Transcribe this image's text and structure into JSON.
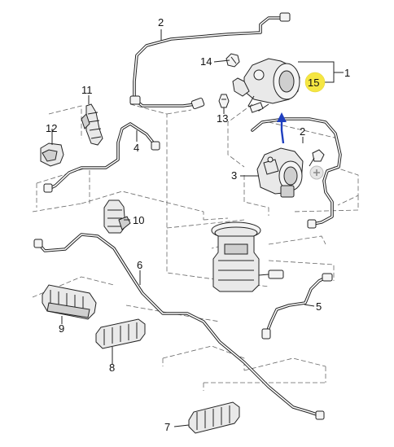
{
  "callouts": {
    "c1": "1",
    "c2a": "2",
    "c2b": "2",
    "c3": "3",
    "c4": "4",
    "c5": "5",
    "c6": "6",
    "c7": "7",
    "c8": "8",
    "c9": "9",
    "c10": "10",
    "c11": "11",
    "c12": "12",
    "c13": "13",
    "c14": "14",
    "c15": "15"
  },
  "colors": {
    "highlight": "#f5e642",
    "arrow": "#1f3fbf",
    "line": "#222222"
  },
  "icons": {
    "zoom": "plus-circle-icon"
  }
}
